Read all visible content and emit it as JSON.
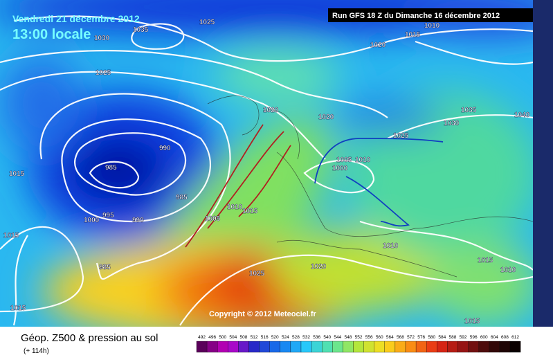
{
  "header": {
    "title": "Vendredi 21 décembre 2012",
    "time": "13:00 locale",
    "run": "Run GFS 18 Z du Dimanche 16 décembre 2012"
  },
  "map": {
    "copyright": "Copyright © 2012 Meteociel.fr",
    "isobar_labels": [
      1035,
      1030,
      1025,
      1025,
      1020,
      1015,
      1010,
      1020,
      1020,
      1035,
      1030,
      1040,
      1025,
      990,
      985,
      1015,
      985,
      1010,
      1005,
      1000,
      1000,
      995,
      990,
      1010,
      1015,
      1005,
      1015,
      1010,
      1015,
      1010,
      985,
      1025,
      1020,
      1015,
      1015
    ]
  },
  "footer": {
    "product": "Géop. Z500 & pression au sol",
    "lead": "(+ 114h)",
    "scale": [
      492,
      496,
      500,
      504,
      508,
      512,
      516,
      520,
      524,
      528,
      532,
      536,
      540,
      544,
      548,
      552,
      556,
      560,
      564,
      568,
      572,
      576,
      580,
      584,
      588,
      592,
      596,
      600,
      604,
      608,
      612
    ]
  }
}
